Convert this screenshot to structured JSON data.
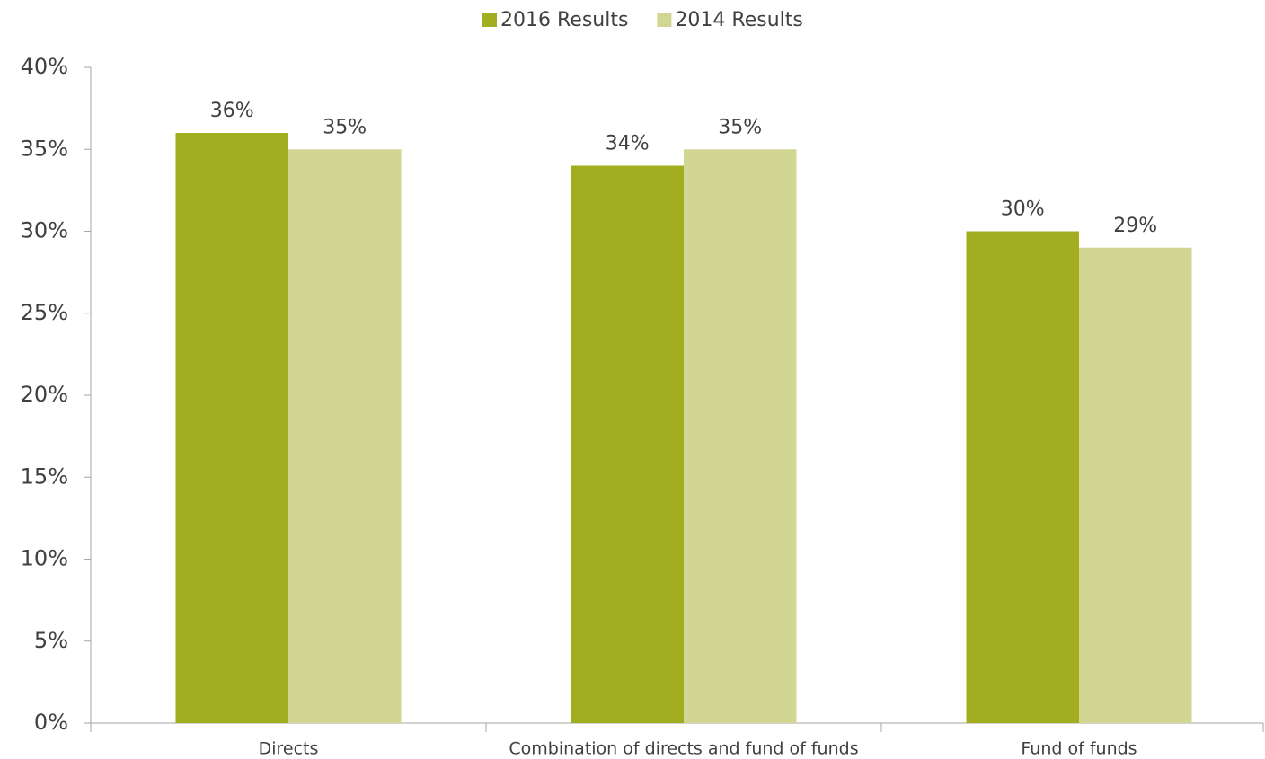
{
  "chart_data": {
    "type": "bar",
    "categories": [
      "Directs",
      "Combination of directs and fund of funds",
      "Fund of funds"
    ],
    "series": [
      {
        "name": "2016 Results",
        "color": "#a2ad1f",
        "values": [
          36,
          34,
          30
        ],
        "value_labels": [
          "36%",
          "34%",
          "30%"
        ]
      },
      {
        "name": "2014 Results",
        "color": "#d1d693",
        "values": [
          35,
          35,
          29
        ],
        "value_labels": [
          "35%",
          "35%",
          "29%"
        ]
      }
    ],
    "ylim": [
      0,
      40
    ],
    "yticks": [
      {
        "value": 0,
        "label": "0%"
      },
      {
        "value": 5,
        "label": "5%"
      },
      {
        "value": 10,
        "label": "10%"
      },
      {
        "value": 15,
        "label": "15%"
      },
      {
        "value": 20,
        "label": "20%"
      },
      {
        "value": 25,
        "label": "25%"
      },
      {
        "value": 30,
        "label": "30%"
      },
      {
        "value": 35,
        "label": "35%"
      },
      {
        "value": 40,
        "label": "40%"
      }
    ],
    "legend": "top"
  }
}
